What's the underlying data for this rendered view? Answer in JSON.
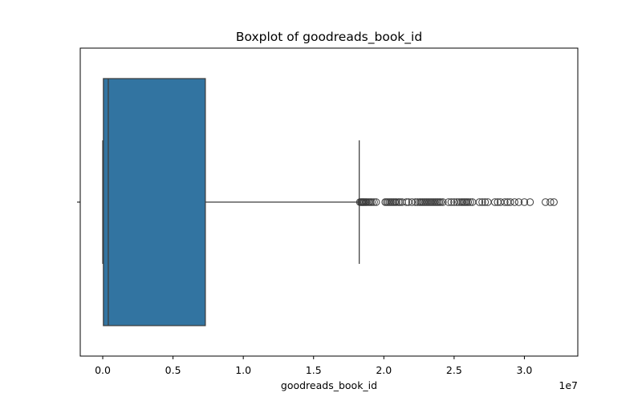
{
  "chart_data": {
    "type": "boxplot",
    "title": "Boxplot of goodreads_book_id",
    "xlabel": "goodreads_book_id",
    "ylabel": "",
    "axis_offset_label": "1e7",
    "xlim": [
      -1600000,
      33800000
    ],
    "xticks": [
      {
        "value": 0,
        "label": "0.0"
      },
      {
        "value": 5000000,
        "label": "0.5"
      },
      {
        "value": 10000000,
        "label": "1.0"
      },
      {
        "value": 15000000,
        "label": "1.5"
      },
      {
        "value": 20000000,
        "label": "2.0"
      },
      {
        "value": 25000000,
        "label": "2.5"
      },
      {
        "value": 30000000,
        "label": "3.0"
      }
    ],
    "grid": false,
    "legend": "none",
    "box_color": "#3274a1",
    "line_color": "#3d3d3d",
    "stats": {
      "whisker_low": 1,
      "q1": 46275,
      "median": 394966,
      "q3": 7300000,
      "whisker_high": 18250000
    },
    "outliers": [
      18300000,
      18380000,
      18440000,
      18500000,
      18560000,
      18620000,
      18700000,
      18760000,
      18850000,
      18950000,
      19050000,
      19150000,
      19300000,
      19450000,
      20100000,
      20200000,
      20300000,
      20400000,
      20500000,
      20600000,
      20700000,
      20800000,
      20900000,
      21050000,
      21150000,
      21300000,
      21600000,
      21750000,
      22000000,
      22250000,
      22400000,
      22550000,
      22650000,
      22750000,
      22850000,
      22950000,
      23050000,
      23150000,
      23250000,
      23350000,
      23450000,
      23550000,
      23650000,
      23750000,
      23850000,
      23950000,
      24050000,
      24200000,
      24600000,
      24800000,
      25000000,
      25200000,
      25350000,
      25500000,
      25600000,
      25700000,
      25800000,
      25900000,
      26000000,
      26150000,
      26300000,
      26800000,
      27000000,
      27200000,
      27400000,
      27900000,
      28100000,
      28300000,
      28600000,
      28800000,
      29000000,
      29300000,
      29600000,
      30000000,
      30400000,
      31500000,
      31850000,
      32100000
    ]
  }
}
